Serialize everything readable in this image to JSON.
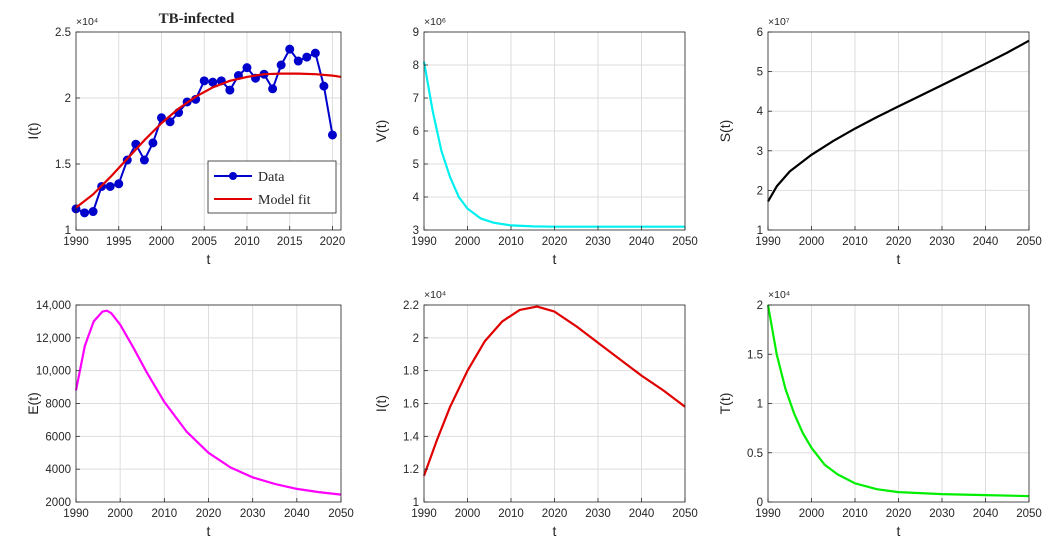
{
  "chart_data": [
    {
      "type": "line",
      "title": "TB-infected",
      "xlabel": "t",
      "ylabel": "I(t)",
      "exponent": "×10⁴",
      "xlim": [
        1990,
        2021
      ],
      "ylim": [
        10000,
        25000
      ],
      "xticks": [
        1990,
        1995,
        2000,
        2005,
        2010,
        2015,
        2020
      ],
      "yticks": [
        10000,
        15000,
        20000,
        25000
      ],
      "ytick_labels": [
        "1",
        "1.5",
        "2",
        "2.5"
      ],
      "grid": true,
      "legend": {
        "placement": "bottom-right",
        "entries": [
          "Data",
          "Model fit"
        ]
      },
      "series": [
        {
          "name": "Data",
          "style": "line-markers",
          "color": "#0000cc",
          "x": [
            1990,
            1991,
            1992,
            1993,
            1994,
            1995,
            1996,
            1997,
            1998,
            1999,
            2000,
            2001,
            2002,
            2003,
            2004,
            2005,
            2006,
            2007,
            2008,
            2009,
            2010,
            2011,
            2012,
            2013,
            2014,
            2015,
            2016,
            2017,
            2018,
            2019,
            2020
          ],
          "y": [
            11600,
            11300,
            11400,
            13300,
            13300,
            13500,
            15300,
            16500,
            15300,
            16600,
            18500,
            18200,
            18900,
            19700,
            19900,
            21300,
            21200,
            21300,
            20600,
            21700,
            22300,
            21500,
            21800,
            20700,
            22500,
            23700,
            22800,
            23100,
            23400,
            20900,
            17200
          ]
        },
        {
          "name": "Model fit",
          "style": "line",
          "color": "#e00000",
          "x": [
            1990,
            1992,
            1994,
            1996,
            1998,
            2000,
            2002,
            2004,
            2006,
            2008,
            2010,
            2012,
            2014,
            2016,
            2018,
            2020,
            2021
          ],
          "y": [
            11700,
            12700,
            14000,
            15400,
            16800,
            18100,
            19200,
            20100,
            20800,
            21300,
            21600,
            21800,
            21850,
            21850,
            21800,
            21700,
            21600
          ]
        }
      ]
    },
    {
      "type": "line",
      "xlabel": "t",
      "ylabel": "V(t)",
      "exponent": "×10⁶",
      "xlim": [
        1990,
        2050
      ],
      "ylim": [
        3000000,
        9000000
      ],
      "xticks": [
        1990,
        2000,
        2010,
        2020,
        2030,
        2040,
        2050
      ],
      "yticks": [
        3000000,
        4000000,
        5000000,
        6000000,
        7000000,
        8000000,
        9000000
      ],
      "ytick_labels": [
        "3",
        "4",
        "5",
        "6",
        "7",
        "8",
        "9"
      ],
      "grid": true,
      "series": [
        {
          "color": "#00f0f0",
          "x": [
            1990,
            1992,
            1994,
            1996,
            1998,
            2000,
            2003,
            2006,
            2010,
            2015,
            2020,
            2030,
            2040,
            2050
          ],
          "y": [
            8100000,
            6600000,
            5400000,
            4600000,
            4000000,
            3650000,
            3350000,
            3220000,
            3140000,
            3110000,
            3100000,
            3100000,
            3100000,
            3100000
          ]
        }
      ]
    },
    {
      "type": "line",
      "xlabel": "t",
      "ylabel": "S(t)",
      "exponent": "×10⁷",
      "xlim": [
        1990,
        2050
      ],
      "ylim": [
        10000000,
        60000000
      ],
      "xticks": [
        1990,
        2000,
        2010,
        2020,
        2030,
        2040,
        2050
      ],
      "yticks": [
        10000000,
        20000000,
        30000000,
        40000000,
        50000000,
        60000000
      ],
      "ytick_labels": [
        "1",
        "2",
        "3",
        "4",
        "5",
        "6"
      ],
      "grid": true,
      "series": [
        {
          "color": "#000000",
          "x": [
            1990,
            1992,
            1995,
            2000,
            2005,
            2010,
            2015,
            2020,
            2025,
            2030,
            2035,
            2040,
            2045,
            2050
          ],
          "y": [
            17200000,
            21000000,
            24800000,
            29000000,
            32500000,
            35600000,
            38500000,
            41200000,
            43900000,
            46600000,
            49300000,
            52000000,
            54800000,
            57800000
          ]
        }
      ]
    },
    {
      "type": "line",
      "xlabel": "t",
      "ylabel": "E(t)",
      "xlim": [
        1990,
        2050
      ],
      "ylim": [
        2000,
        14000
      ],
      "xticks": [
        1990,
        2000,
        2010,
        2020,
        2030,
        2040,
        2050
      ],
      "yticks": [
        2000,
        4000,
        6000,
        8000,
        10000,
        12000,
        14000
      ],
      "ytick_labels": [
        "2000",
        "4000",
        "6000",
        "8000",
        "10,000",
        "12,000",
        "14,000"
      ],
      "grid": true,
      "series": [
        {
          "color": "#ff00ff",
          "x": [
            1990,
            1992,
            1994,
            1996,
            1997,
            1998,
            2000,
            2003,
            2006,
            2010,
            2015,
            2020,
            2025,
            2030,
            2035,
            2040,
            2045,
            2050
          ],
          "y": [
            8800,
            11500,
            13000,
            13600,
            13650,
            13500,
            12800,
            11400,
            9900,
            8100,
            6300,
            5000,
            4100,
            3500,
            3100,
            2800,
            2600,
            2450
          ]
        }
      ]
    },
    {
      "type": "line",
      "xlabel": "t",
      "ylabel": "I(t)",
      "exponent": "×10⁴",
      "xlim": [
        1990,
        2050
      ],
      "ylim": [
        10000,
        22000
      ],
      "xticks": [
        1990,
        2000,
        2010,
        2020,
        2030,
        2040,
        2050
      ],
      "yticks": [
        10000,
        12000,
        14000,
        16000,
        18000,
        20000,
        22000
      ],
      "ytick_labels": [
        "1",
        "1.2",
        "1.4",
        "1.6",
        "1.8",
        "2",
        "2.2"
      ],
      "grid": true,
      "series": [
        {
          "color": "#e00000",
          "x": [
            1990,
            1993,
            1996,
            2000,
            2004,
            2008,
            2012,
            2016,
            2020,
            2025,
            2030,
            2035,
            2040,
            2045,
            2050
          ],
          "y": [
            11600,
            13800,
            15800,
            18000,
            19800,
            21000,
            21700,
            21900,
            21600,
            20700,
            19700,
            18700,
            17700,
            16800,
            15800
          ]
        }
      ]
    },
    {
      "type": "line",
      "xlabel": "t",
      "ylabel": "T(t)",
      "exponent": "×10⁴",
      "xlim": [
        1990,
        2050
      ],
      "ylim": [
        0,
        20000
      ],
      "xticks": [
        1990,
        2000,
        2010,
        2020,
        2030,
        2040,
        2050
      ],
      "yticks": [
        0,
        5000,
        10000,
        15000,
        20000
      ],
      "ytick_labels": [
        "0",
        "0.5",
        "1",
        "1.5",
        "2"
      ],
      "grid": true,
      "series": [
        {
          "color": "#00ee00",
          "x": [
            1990,
            1992,
            1994,
            1996,
            1998,
            2000,
            2003,
            2006,
            2010,
            2015,
            2020,
            2030,
            2040,
            2050
          ],
          "y": [
            20000,
            15000,
            11500,
            9000,
            7000,
            5500,
            3800,
            2800,
            1900,
            1300,
            1000,
            800,
            700,
            600
          ]
        }
      ]
    }
  ]
}
